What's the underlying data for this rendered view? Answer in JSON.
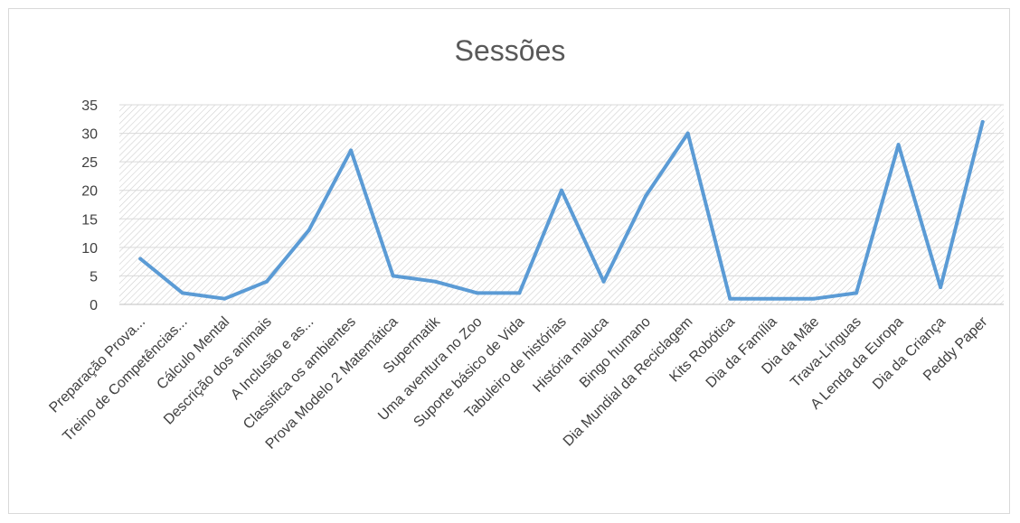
{
  "chart_data": {
    "type": "line",
    "title": "Sessões",
    "xlabel": "",
    "ylabel": "",
    "ylim": [
      0,
      35
    ],
    "yticks": [
      0,
      5,
      10,
      15,
      20,
      25,
      30,
      35
    ],
    "grid": true,
    "legend": "none",
    "categories": [
      "Preparação Prova...",
      "Treino de Competências...",
      "Cálculo Mental",
      "Descrição dos animais",
      "A Inclusão e as...",
      "Classifica os ambientes",
      "Prova Modelo 2 Matemática",
      "Supermatik",
      "Uma aventura no Zoo",
      "Suporte básico de Vida",
      "Tabuleiro de histórias",
      "História maluca",
      "Bingo humano",
      "Dia Mundial da Reciclagem",
      "Kits Robótica",
      "Dia da Família",
      "Dia da Mãe",
      "Trava-Línguas",
      "A Lenda da Europa",
      "Dia da Criança",
      "Peddy Paper"
    ],
    "series": [
      {
        "values": [
          8,
          2,
          1,
          4,
          13,
          27,
          5,
          4,
          2,
          2,
          20,
          4,
          19,
          30,
          1,
          1,
          1,
          2,
          28,
          3,
          32
        ],
        "color": "#5b9bd5"
      }
    ]
  }
}
